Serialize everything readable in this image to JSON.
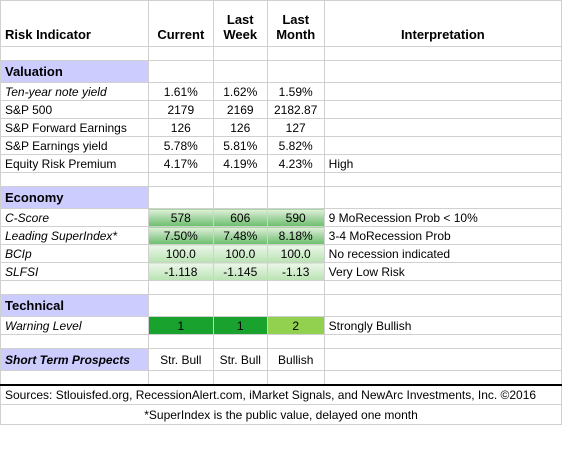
{
  "header": {
    "risk_indicator": "Risk Indicator",
    "current": "Current",
    "last_week_1": "Last",
    "last_week_2": "Week",
    "last_month_1": "Last",
    "last_month_2": "Month",
    "interpretation": "Interpretation"
  },
  "valuation": {
    "title": "Valuation",
    "rows": [
      {
        "label": "Ten-year note yield",
        "current": "1.61%",
        "last_week": "1.62%",
        "last_month": "1.59%",
        "interpretation": ""
      },
      {
        "label": "S&P 500",
        "current": "2179",
        "last_week": "2169",
        "last_month": "2182.87",
        "interpretation": ""
      },
      {
        "label": "S&P Forward Earnings",
        "current": "126",
        "last_week": "126",
        "last_month": "127",
        "interpretation": ""
      },
      {
        "label": "S&P Earnings yield",
        "current": "5.78%",
        "last_week": "5.81%",
        "last_month": "5.82%",
        "interpretation": ""
      },
      {
        "label": "Equity Risk Premium",
        "current": "4.17%",
        "last_week": "4.19%",
        "last_month": "4.23%",
        "interpretation": "High"
      }
    ]
  },
  "economy": {
    "title": "Economy",
    "rows": [
      {
        "label": "C-Score",
        "current": "578",
        "last_week": "606",
        "last_month": "590",
        "interpretation": "9 MoRecession Prob < 10%"
      },
      {
        "label": "Leading SuperIndex*",
        "current": "7.50%",
        "last_week": "7.48%",
        "last_month": "8.18%",
        "interpretation": "3-4 MoRecession Prob"
      },
      {
        "label": "BCIp",
        "current": "100.0",
        "last_week": "100.0",
        "last_month": "100.0",
        "interpretation": "No recession indicated"
      },
      {
        "label": "SLFSI",
        "current": "-1.118",
        "last_week": "-1.145",
        "last_month": "-1.13",
        "interpretation": "Very Low Risk"
      }
    ]
  },
  "technical": {
    "title": "Technical",
    "rows": [
      {
        "label": "Warning Level",
        "current": "1",
        "last_week": "1",
        "last_month": "2",
        "interpretation": "Strongly Bullish"
      }
    ]
  },
  "prospects": {
    "label": "Short Term Prospects",
    "current": "Str. Bull",
    "last_week": "Str. Bull",
    "last_month": "Bullish"
  },
  "footer": {
    "sources": "Sources: Stlouisfed.org, RecessionAlert.com, iMarket Signals, and NewArc Investments, Inc. ©2016",
    "footnote": "*SuperIndex is the public value, delayed one month"
  },
  "colors": {
    "section_bg": "#ccccff",
    "warning_dark_green": "#1aa22f",
    "warning_light_green": "#92d050",
    "gradient_green": "#6bbf6b"
  }
}
